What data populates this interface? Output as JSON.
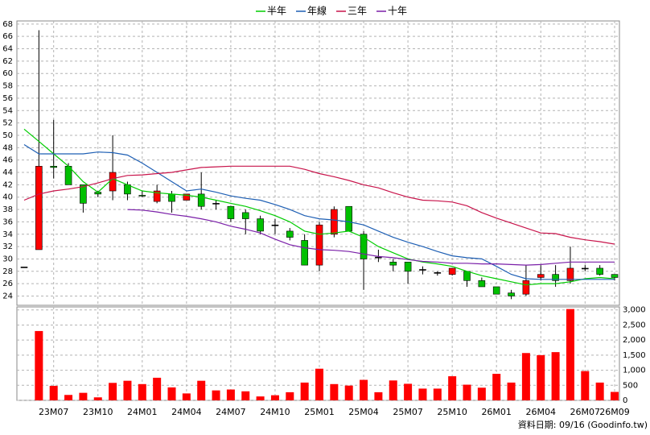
{
  "chart_data": {
    "type": "candlestick",
    "categories": [
      null,
      null,
      "23M07",
      null,
      null,
      "23M10",
      null,
      null,
      "24M01",
      null,
      null,
      "24M04",
      null,
      null,
      "24M07",
      null,
      null,
      "24M10",
      null,
      null,
      "25M01",
      null,
      null,
      "25M04",
      null,
      null,
      "25M07",
      null,
      null,
      "25M10",
      null,
      null,
      "26M01",
      null,
      null,
      "26M04",
      null,
      null,
      "26M07",
      null,
      "26M09"
    ],
    "open": [
      28.7,
      31.5,
      45,
      45,
      42,
      40.8,
      41,
      42,
      40.3,
      39.3,
      40.5,
      39.5,
      40.5,
      39,
      38.5,
      37.5,
      36.5,
      35.5,
      34.5,
      33,
      29,
      34,
      38.5,
      34,
      30.3,
      29.5,
      29.5,
      28.3,
      27.8,
      27.5,
      28,
      26.5,
      25.5,
      24.5,
      24.3,
      27,
      27.5,
      26.5,
      28.5,
      28.5,
      27.5
    ],
    "high": [
      28.7,
      67,
      52.5,
      45.5,
      42,
      41,
      50,
      42.5,
      41,
      42,
      41,
      40.5,
      44,
      39.5,
      38.5,
      38,
      37,
      36.5,
      35,
      34,
      36,
      38.5,
      38.5,
      34.5,
      31.5,
      30,
      29.5,
      28.8,
      28,
      28.5,
      28,
      27,
      25.5,
      25,
      29,
      29,
      29,
      32,
      29,
      29,
      27.5
    ],
    "low": [
      28.7,
      31.5,
      43,
      42,
      37.5,
      40,
      39.5,
      39.5,
      40,
      39,
      37.5,
      39.5,
      38,
      38,
      36,
      34,
      34,
      34,
      33,
      29,
      28,
      33.5,
      34.5,
      25,
      29.5,
      28,
      26,
      27.5,
      27.3,
      27.3,
      25.5,
      25.5,
      24.3,
      23.5,
      24,
      26.5,
      25.5,
      26,
      28,
      27.3,
      26.5
    ],
    "close": [
      28.7,
      45,
      44.8,
      42,
      39,
      40.5,
      44,
      40.5,
      40.2,
      41,
      39.3,
      40.5,
      38.5,
      39,
      36.5,
      36.5,
      34.5,
      35.5,
      33.5,
      29,
      35.5,
      38,
      34.5,
      30,
      30.3,
      29,
      28,
      28.3,
      27.8,
      28.5,
      26.5,
      25.5,
      24.3,
      24,
      26.5,
      27.5,
      26.5,
      28.5,
      28.5,
      27.5,
      27
    ],
    "up_color": "#ff0000",
    "down_color": "#00c000",
    "volume": [
      null,
      2300,
      480,
      180,
      250,
      100,
      580,
      650,
      540,
      750,
      430,
      230,
      650,
      330,
      360,
      300,
      130,
      170,
      270,
      590,
      1050,
      540,
      490,
      680,
      270,
      660,
      550,
      390,
      390,
      800,
      520,
      420,
      880,
      590,
      1570,
      1500,
      1600,
      3030,
      970,
      590,
      280
    ],
    "volume_color": "#ff0000",
    "series": [
      {
        "name": "半年",
        "color": "#00cc00",
        "values": [
          51,
          49,
          47,
          45,
          42.5,
          40.8,
          43,
          42,
          41,
          40.7,
          40.5,
          40.3,
          40,
          39.5,
          39,
          38.5,
          37.8,
          37,
          36,
          34.5,
          34,
          34.2,
          34.5,
          33.5,
          32,
          31,
          30,
          29.5,
          29.2,
          28.8,
          28,
          27.3,
          26.8,
          26.3,
          25.8,
          26,
          26,
          26.3,
          26.8,
          27,
          26.8
        ]
      },
      {
        "name": "年線",
        "color": "#1e5fb4",
        "values": [
          48.5,
          47,
          47,
          47,
          47,
          47.3,
          47.2,
          46.8,
          45.5,
          44,
          42.5,
          41,
          41.3,
          40.8,
          40.2,
          39.8,
          39.5,
          38.8,
          38,
          37,
          36.5,
          36.3,
          36,
          35.5,
          34.5,
          33.5,
          32.7,
          32,
          31.2,
          30.5,
          30.2,
          30,
          28.8,
          27.5,
          26.8,
          26.7,
          26.7,
          26.7,
          26.7,
          26.7,
          26.7
        ]
      },
      {
        "name": "三年",
        "color": "#c8144b",
        "values": [
          39.5,
          40.5,
          41,
          41.3,
          41.7,
          42.3,
          43,
          43.5,
          43.6,
          43.8,
          44,
          44.4,
          44.8,
          44.9,
          45,
          45,
          45,
          45,
          45,
          44.5,
          43.8,
          43.3,
          42.7,
          42,
          41.5,
          40.7,
          40,
          39.5,
          39.4,
          39.2,
          38.6,
          37.5,
          36.6,
          35.8,
          35,
          34.2,
          34.1,
          33.5,
          33.1,
          32.8,
          32.4
        ]
      },
      {
        "name": "十年",
        "color": "#7a1fa8",
        "values": [
          null,
          null,
          null,
          null,
          null,
          null,
          null,
          38,
          37.9,
          37.6,
          37.2,
          36.9,
          36.5,
          36,
          35.3,
          34.8,
          34.2,
          33.2,
          32.3,
          31.8,
          31.5,
          31.4,
          31.2,
          30.8,
          30.4,
          30.2,
          29.9,
          29.6,
          29.5,
          29.3,
          29.3,
          29.2,
          29.2,
          29.1,
          29,
          29.1,
          29.3,
          29.5,
          29.5,
          29.5,
          29.5
        ]
      }
    ],
    "ylim": [
      22.5,
      68.5
    ],
    "yticks": [
      24,
      26,
      28,
      30,
      32,
      34,
      36,
      38,
      40,
      42,
      44,
      46,
      48,
      50,
      52,
      54,
      56,
      58,
      60,
      62,
      64,
      66,
      68
    ],
    "y2lim": [
      0,
      3100
    ],
    "y2ticks": [
      0,
      500,
      {
        "value": 1000,
        "label": "1,000"
      },
      {
        "value": 1500,
        "label": "1,500"
      },
      {
        "value": 2000,
        "label": "2,000"
      },
      {
        "value": 2500,
        "label": "2,500"
      },
      {
        "value": 3000,
        "label": "3,000"
      }
    ],
    "grid": true,
    "footer": "資料日期: 09/16 (Goodinfo.tw)"
  }
}
